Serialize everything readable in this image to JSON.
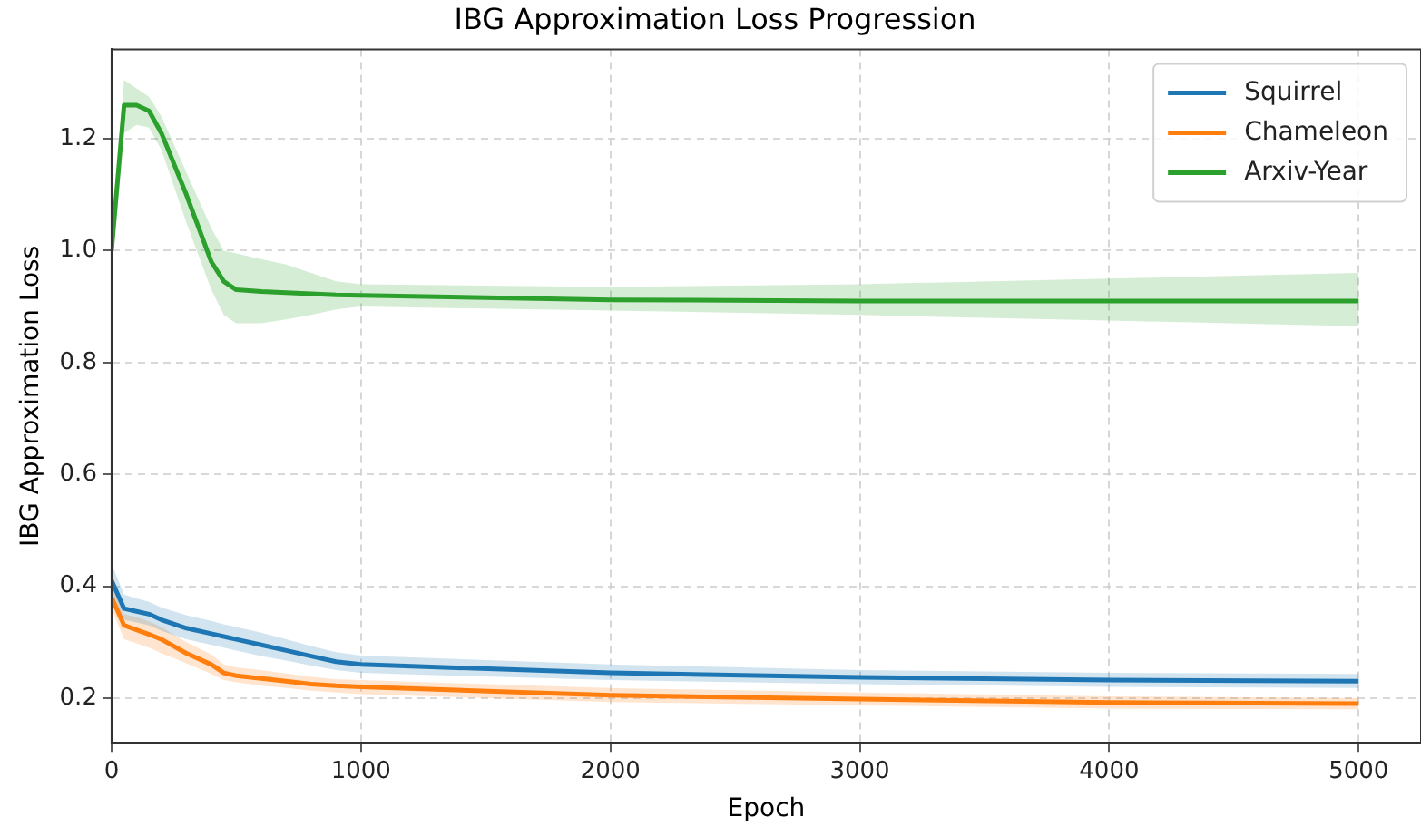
{
  "chart_data": {
    "type": "line",
    "title": "IBG Approximation Loss Progression",
    "xlabel": "Epoch",
    "ylabel": "IBG Approximation Loss",
    "x": [
      0,
      50,
      100,
      150,
      200,
      300,
      400,
      450,
      500,
      600,
      700,
      800,
      900,
      1000,
      2000,
      3000,
      4000,
      5000
    ],
    "series": [
      {
        "name": "Squirrel",
        "color": "#1f77b4",
        "values": [
          0.41,
          0.36,
          0.355,
          0.35,
          0.34,
          0.325,
          0.315,
          0.31,
          0.305,
          0.295,
          0.285,
          0.275,
          0.265,
          0.26,
          0.245,
          0.237,
          0.232,
          0.23
        ],
        "lower": [
          0.39,
          0.34,
          0.335,
          0.33,
          0.32,
          0.305,
          0.295,
          0.29,
          0.285,
          0.275,
          0.267,
          0.258,
          0.25,
          0.245,
          0.232,
          0.225,
          0.22,
          0.218
        ],
        "upper": [
          0.44,
          0.385,
          0.378,
          0.372,
          0.362,
          0.348,
          0.338,
          0.332,
          0.327,
          0.317,
          0.305,
          0.293,
          0.282,
          0.276,
          0.26,
          0.25,
          0.245,
          0.243
        ]
      },
      {
        "name": "Chameleon",
        "color": "#ff7f0e",
        "values": [
          0.38,
          0.33,
          0.322,
          0.314,
          0.305,
          0.28,
          0.26,
          0.245,
          0.24,
          0.235,
          0.23,
          0.225,
          0.222,
          0.22,
          0.205,
          0.198,
          0.192,
          0.19
        ],
        "lower": [
          0.36,
          0.305,
          0.298,
          0.29,
          0.28,
          0.262,
          0.243,
          0.232,
          0.228,
          0.222,
          0.218,
          0.213,
          0.21,
          0.207,
          0.193,
          0.187,
          0.181,
          0.18
        ],
        "upper": [
          0.4,
          0.35,
          0.345,
          0.337,
          0.327,
          0.3,
          0.278,
          0.26,
          0.255,
          0.25,
          0.244,
          0.238,
          0.234,
          0.232,
          0.218,
          0.21,
          0.203,
          0.2
        ]
      },
      {
        "name": "Arxiv-Year",
        "color": "#2ca02c",
        "values": [
          1.0,
          1.26,
          1.26,
          1.25,
          1.21,
          1.1,
          0.98,
          0.945,
          0.93,
          0.927,
          0.925,
          0.923,
          0.921,
          0.92,
          0.912,
          0.91,
          0.91,
          0.91
        ],
        "lower": [
          1.0,
          1.21,
          1.225,
          1.22,
          1.18,
          1.05,
          0.93,
          0.885,
          0.87,
          0.87,
          0.877,
          0.885,
          0.895,
          0.9,
          0.893,
          0.885,
          0.875,
          0.865
        ],
        "upper": [
          1.0,
          1.305,
          1.29,
          1.275,
          1.24,
          1.14,
          1.04,
          1.0,
          0.995,
          0.985,
          0.975,
          0.96,
          0.945,
          0.94,
          0.935,
          0.94,
          0.95,
          0.96
        ]
      }
    ],
    "xlim": [
      0,
      5250
    ],
    "xticks": [
      0,
      1000,
      2000,
      3000,
      4000,
      5000
    ],
    "ylim": [
      0.12,
      1.36
    ],
    "yticks": [
      0.2,
      0.4,
      0.6,
      0.8,
      {
        "value": 1,
        "label": "1.0"
      },
      1.2
    ],
    "grid": true,
    "legend": "top right",
    "line_style": "solid",
    "marker": "none"
  }
}
